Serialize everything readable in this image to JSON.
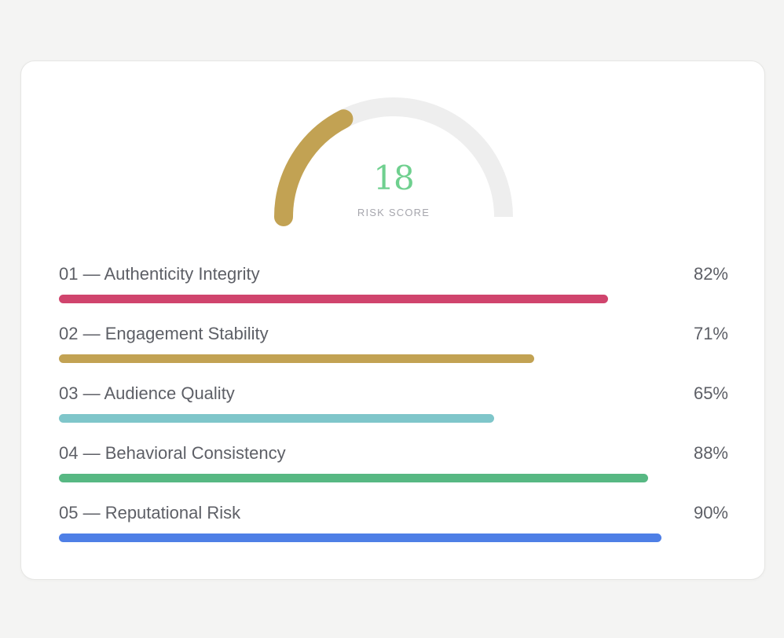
{
  "gauge": {
    "score": "18",
    "label": "RISK SCORE",
    "fill_fraction": 0.35,
    "fill_color": "#c2a253",
    "track_color": "#eeeeee",
    "score_color": "#6fd08f"
  },
  "metrics": [
    {
      "label": "01 — Authenticity Integrity",
      "value": "82%",
      "fraction": 0.82,
      "color": "#d0446d"
    },
    {
      "label": "02 — Engagement Stability",
      "value": "71%",
      "fraction": 0.71,
      "color": "#c2a253"
    },
    {
      "label": "03 — Audience Quality",
      "value": "65%",
      "fraction": 0.65,
      "color": "#7fc6ca"
    },
    {
      "label": "04 — Behavioral Consistency",
      "value": "88%",
      "fraction": 0.88,
      "color": "#57b883"
    },
    {
      "label": "05 — Reputational Risk",
      "value": "90%",
      "fraction": 0.9,
      "color": "#4e7fe6"
    }
  ]
}
